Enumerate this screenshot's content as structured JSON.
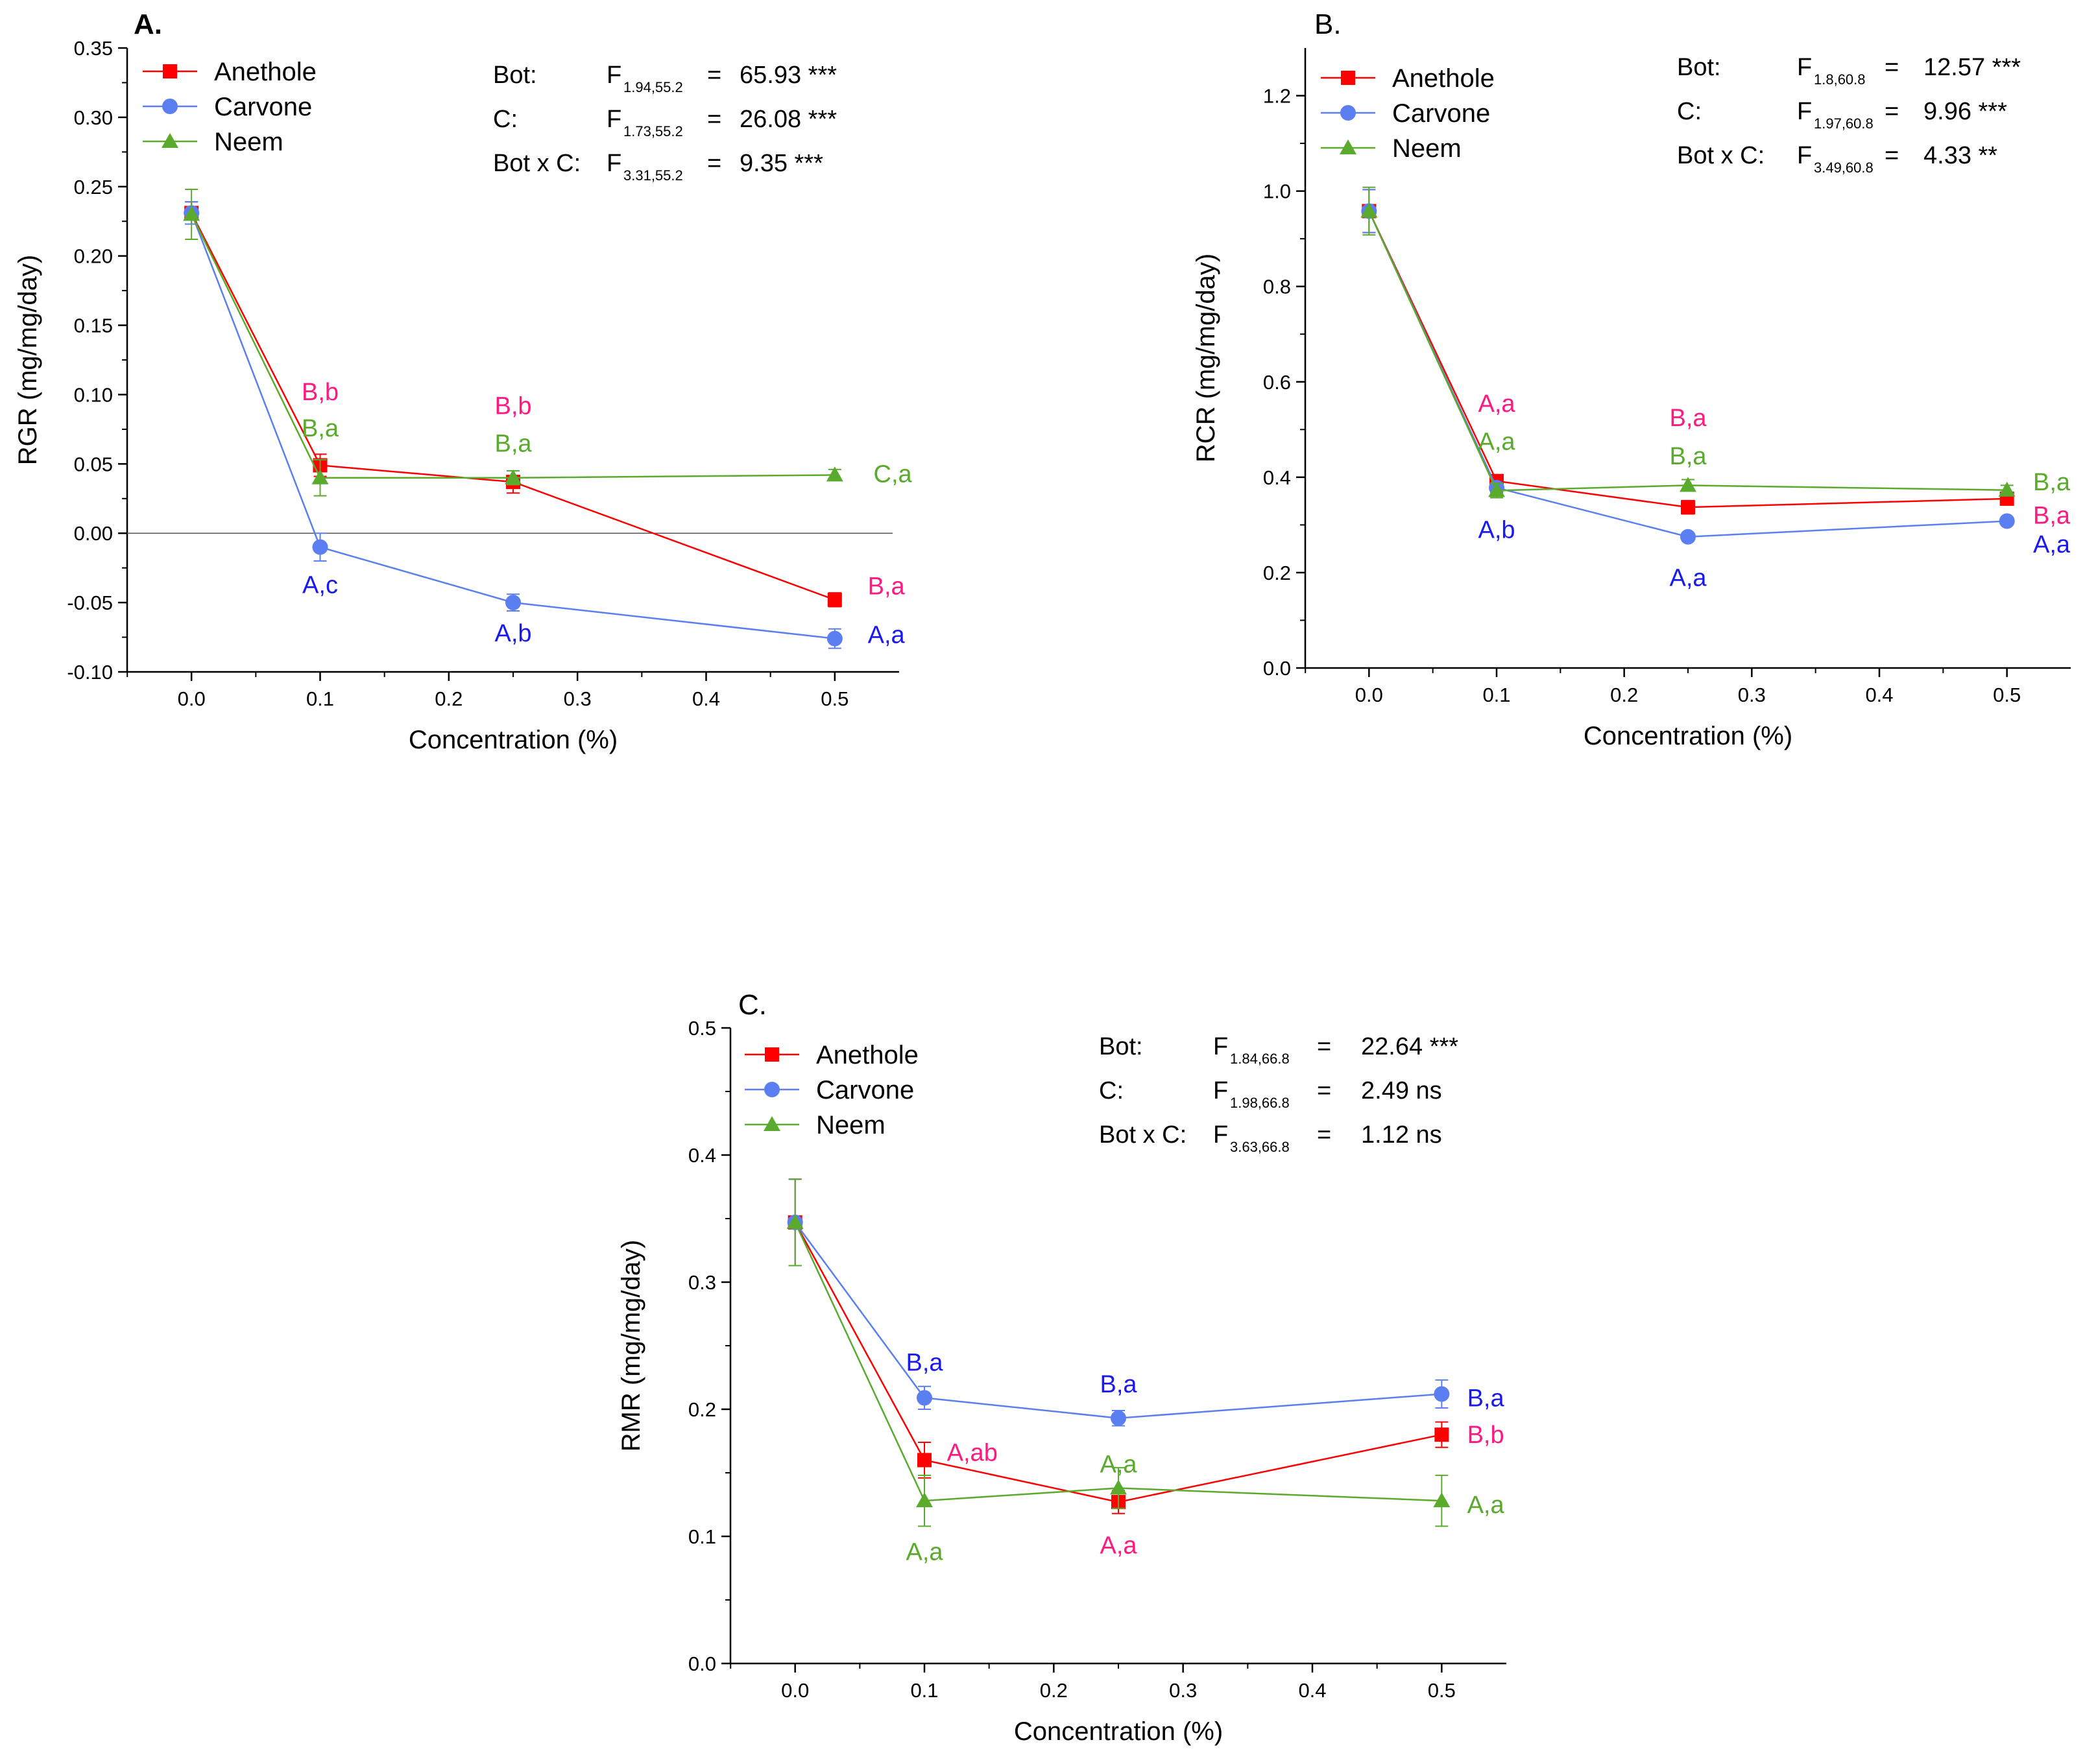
{
  "colors": {
    "anethole": "#ff0000",
    "carvone": "#5b7ff0",
    "neem": "#5aaa2e",
    "letters_red": "#ff1a80",
    "letters_blue": "#1a1aee",
    "letters_green": "#5aaa2e",
    "axis": "#000000"
  },
  "chart_data": [
    {
      "id": "A",
      "type": "line",
      "panel_label": "A.",
      "xlabel": "Concentration (%)",
      "ylabel": "RGR (mg/mg/day)",
      "xlim": [
        -0.05,
        0.55
      ],
      "ylim": [
        -0.1,
        0.35
      ],
      "xticks": [
        0.0,
        0.1,
        0.2,
        0.3,
        0.4,
        0.5
      ],
      "xtick_labels": [
        "0.0",
        "0.1",
        "0.2",
        "0.3",
        "0.4",
        "0.5"
      ],
      "yticks": [
        -0.1,
        -0.05,
        0.0,
        0.05,
        0.1,
        0.15,
        0.2,
        0.25,
        0.3,
        0.35
      ],
      "ytick_labels": [
        "-0.10",
        "-0.05",
        "0.00",
        "0.05",
        "0.10",
        "0.15",
        "0.20",
        "0.25",
        "0.30",
        "0.35"
      ],
      "zero_line": true,
      "x": [
        0.0,
        0.1,
        0.25,
        0.5
      ],
      "series": [
        {
          "name": "Anethole",
          "key": "anethole",
          "marker": "square",
          "values": [
            0.231,
            0.049,
            0.037,
            -0.048
          ],
          "errors": [
            0.008,
            0.008,
            0.008,
            0.005
          ]
        },
        {
          "name": "Carvone",
          "key": "carvone",
          "marker": "circle",
          "values": [
            0.231,
            -0.01,
            -0.05,
            -0.076
          ],
          "errors": [
            0.008,
            0.01,
            0.006,
            0.007
          ]
        },
        {
          "name": "Neem",
          "key": "neem",
          "marker": "triangle",
          "values": [
            0.23,
            0.04,
            0.04,
            0.042
          ],
          "errors": [
            0.018,
            0.013,
            0.005,
            0.004
          ]
        }
      ],
      "annotations": [
        {
          "text": "B,b",
          "x": 0.1,
          "y": 0.102,
          "key": "letters_red"
        },
        {
          "text": "B,a",
          "x": 0.1,
          "y": 0.076,
          "key": "letters_green"
        },
        {
          "text": "A,c",
          "x": 0.1,
          "y": -0.037,
          "key": "letters_blue"
        },
        {
          "text": "B,b",
          "x": 0.25,
          "y": 0.092,
          "key": "letters_red"
        },
        {
          "text": "B,a",
          "x": 0.25,
          "y": 0.065,
          "key": "letters_green"
        },
        {
          "text": "A,b",
          "x": 0.25,
          "y": -0.072,
          "key": "letters_blue"
        },
        {
          "text": "C,a",
          "x": 0.545,
          "y": 0.043,
          "key": "letters_green"
        },
        {
          "text": "B,a",
          "x": 0.54,
          "y": -0.038,
          "key": "letters_red"
        },
        {
          "text": "A,a",
          "x": 0.54,
          "y": -0.073,
          "key": "letters_blue"
        }
      ],
      "stats": [
        {
          "label": "Bot:",
          "sub": "1.94,55.2",
          "value": "65.93 ***"
        },
        {
          "label": "C:",
          "sub": "1.73,55.2",
          "value": "26.08 ***"
        },
        {
          "label": "Bot x C:",
          "sub": "3.31,55.2",
          "value": "9.35 ***"
        }
      ],
      "legend_position": "top-left"
    },
    {
      "id": "B",
      "type": "line",
      "panel_label": "B.",
      "xlabel": "Concentration (%)",
      "ylabel": "RCR (mg/mg/day)",
      "xlim": [
        -0.05,
        0.55
      ],
      "ylim": [
        0.0,
        1.3
      ],
      "xticks": [
        0.0,
        0.1,
        0.2,
        0.3,
        0.4,
        0.5
      ],
      "xtick_labels": [
        "0.0",
        "0.1",
        "0.2",
        "0.3",
        "0.4",
        "0.5"
      ],
      "yticks": [
        0.0,
        0.2,
        0.4,
        0.6,
        0.8,
        1.0,
        1.2
      ],
      "ytick_labels": [
        "0.0",
        "0.2",
        "0.4",
        "0.6",
        "0.8",
        "1.0",
        "1.2"
      ],
      "zero_line": false,
      "x": [
        0.0,
        0.1,
        0.25,
        0.5
      ],
      "series": [
        {
          "name": "Anethole",
          "key": "anethole",
          "marker": "square",
          "values": [
            0.958,
            0.392,
            0.337,
            0.355
          ],
          "errors": [
            0.045,
            0.012,
            0.014,
            0.01
          ]
        },
        {
          "name": "Carvone",
          "key": "carvone",
          "marker": "circle",
          "values": [
            0.958,
            0.378,
            0.275,
            0.308
          ],
          "errors": [
            0.045,
            0.01,
            0.008,
            0.008
          ]
        },
        {
          "name": "Neem",
          "key": "neem",
          "marker": "triangle",
          "values": [
            0.958,
            0.372,
            0.383,
            0.373
          ],
          "errors": [
            0.05,
            0.015,
            0.012,
            0.01
          ]
        }
      ],
      "annotations": [
        {
          "text": "A,a",
          "x": 0.1,
          "y": 0.555,
          "key": "letters_red"
        },
        {
          "text": "A,a",
          "x": 0.1,
          "y": 0.475,
          "key": "letters_green"
        },
        {
          "text": "A,b",
          "x": 0.1,
          "y": 0.29,
          "key": "letters_blue"
        },
        {
          "text": "B,a",
          "x": 0.25,
          "y": 0.525,
          "key": "letters_red"
        },
        {
          "text": "B,a",
          "x": 0.25,
          "y": 0.445,
          "key": "letters_green"
        },
        {
          "text": "A,a",
          "x": 0.25,
          "y": 0.19,
          "key": "letters_blue"
        },
        {
          "text": "B,a",
          "x": 0.535,
          "y": 0.39,
          "key": "letters_green"
        },
        {
          "text": "B,a",
          "x": 0.535,
          "y": 0.32,
          "key": "letters_red"
        },
        {
          "text": "A,a",
          "x": 0.535,
          "y": 0.26,
          "key": "letters_blue"
        }
      ],
      "stats": [
        {
          "label": "Bot:",
          "sub": "1.8,60.8",
          "value": "12.57 ***"
        },
        {
          "label": "C:",
          "sub": "1.97,60.8",
          "value": "9.96 ***"
        },
        {
          "label": "Bot x C:",
          "sub": "3.49,60.8",
          "value": "4.33 **"
        }
      ],
      "legend_position": "top-left"
    },
    {
      "id": "C",
      "type": "line",
      "panel_label": "C.",
      "xlabel": "Concentration (%)",
      "ylabel": "RMR (mg/mg/day)",
      "xlim": [
        -0.05,
        0.55
      ],
      "ylim": [
        0.0,
        0.5
      ],
      "xticks": [
        0.0,
        0.1,
        0.2,
        0.3,
        0.4,
        0.5
      ],
      "xtick_labels": [
        "0.0",
        "0.1",
        "0.2",
        "0.3",
        "0.4",
        "0.5"
      ],
      "yticks": [
        0.0,
        0.1,
        0.2,
        0.3,
        0.4,
        0.5
      ],
      "ytick_labels": [
        "0.0",
        "0.1",
        "0.2",
        "0.3",
        "0.4",
        "0.5"
      ],
      "zero_line": false,
      "x": [
        0.0,
        0.1,
        0.25,
        0.5
      ],
      "series": [
        {
          "name": "Anethole",
          "key": "anethole",
          "marker": "square",
          "values": [
            0.347,
            0.16,
            0.127,
            0.18
          ],
          "errors": [
            0.034,
            0.014,
            0.009,
            0.01
          ]
        },
        {
          "name": "Carvone",
          "key": "carvone",
          "marker": "circle",
          "values": [
            0.347,
            0.209,
            0.193,
            0.212
          ],
          "errors": [
            0.034,
            0.009,
            0.006,
            0.011
          ]
        },
        {
          "name": "Neem",
          "key": "neem",
          "marker": "triangle",
          "values": [
            0.347,
            0.128,
            0.138,
            0.128
          ],
          "errors": [
            0.034,
            0.02,
            0.016,
            0.02
          ]
        }
      ],
      "annotations": [
        {
          "text": "B,a",
          "x": 0.1,
          "y": 0.237,
          "key": "letters_blue"
        },
        {
          "text": "A,ab",
          "x": 0.137,
          "y": 0.166,
          "key": "letters_red"
        },
        {
          "text": "A,a",
          "x": 0.1,
          "y": 0.088,
          "key": "letters_green"
        },
        {
          "text": "B,a",
          "x": 0.25,
          "y": 0.22,
          "key": "letters_blue"
        },
        {
          "text": "A,a",
          "x": 0.25,
          "y": 0.157,
          "key": "letters_green"
        },
        {
          "text": "A,a",
          "x": 0.25,
          "y": 0.093,
          "key": "letters_red"
        },
        {
          "text": "B,a",
          "x": 0.534,
          "y": 0.209,
          "key": "letters_blue"
        },
        {
          "text": "B,b",
          "x": 0.534,
          "y": 0.18,
          "key": "letters_red"
        },
        {
          "text": "A,a",
          "x": 0.534,
          "y": 0.125,
          "key": "letters_green"
        }
      ],
      "stats": [
        {
          "label": "Bot:",
          "sub": "1.84,66.8",
          "value": "22.64 ***"
        },
        {
          "label": "C:",
          "sub": "1.98,66.8",
          "value": "2.49 ns"
        },
        {
          "label": "Bot x C:",
          "sub": "3.63,66.8",
          "value": "1.12 ns"
        }
      ],
      "legend_position": "top-left"
    }
  ]
}
